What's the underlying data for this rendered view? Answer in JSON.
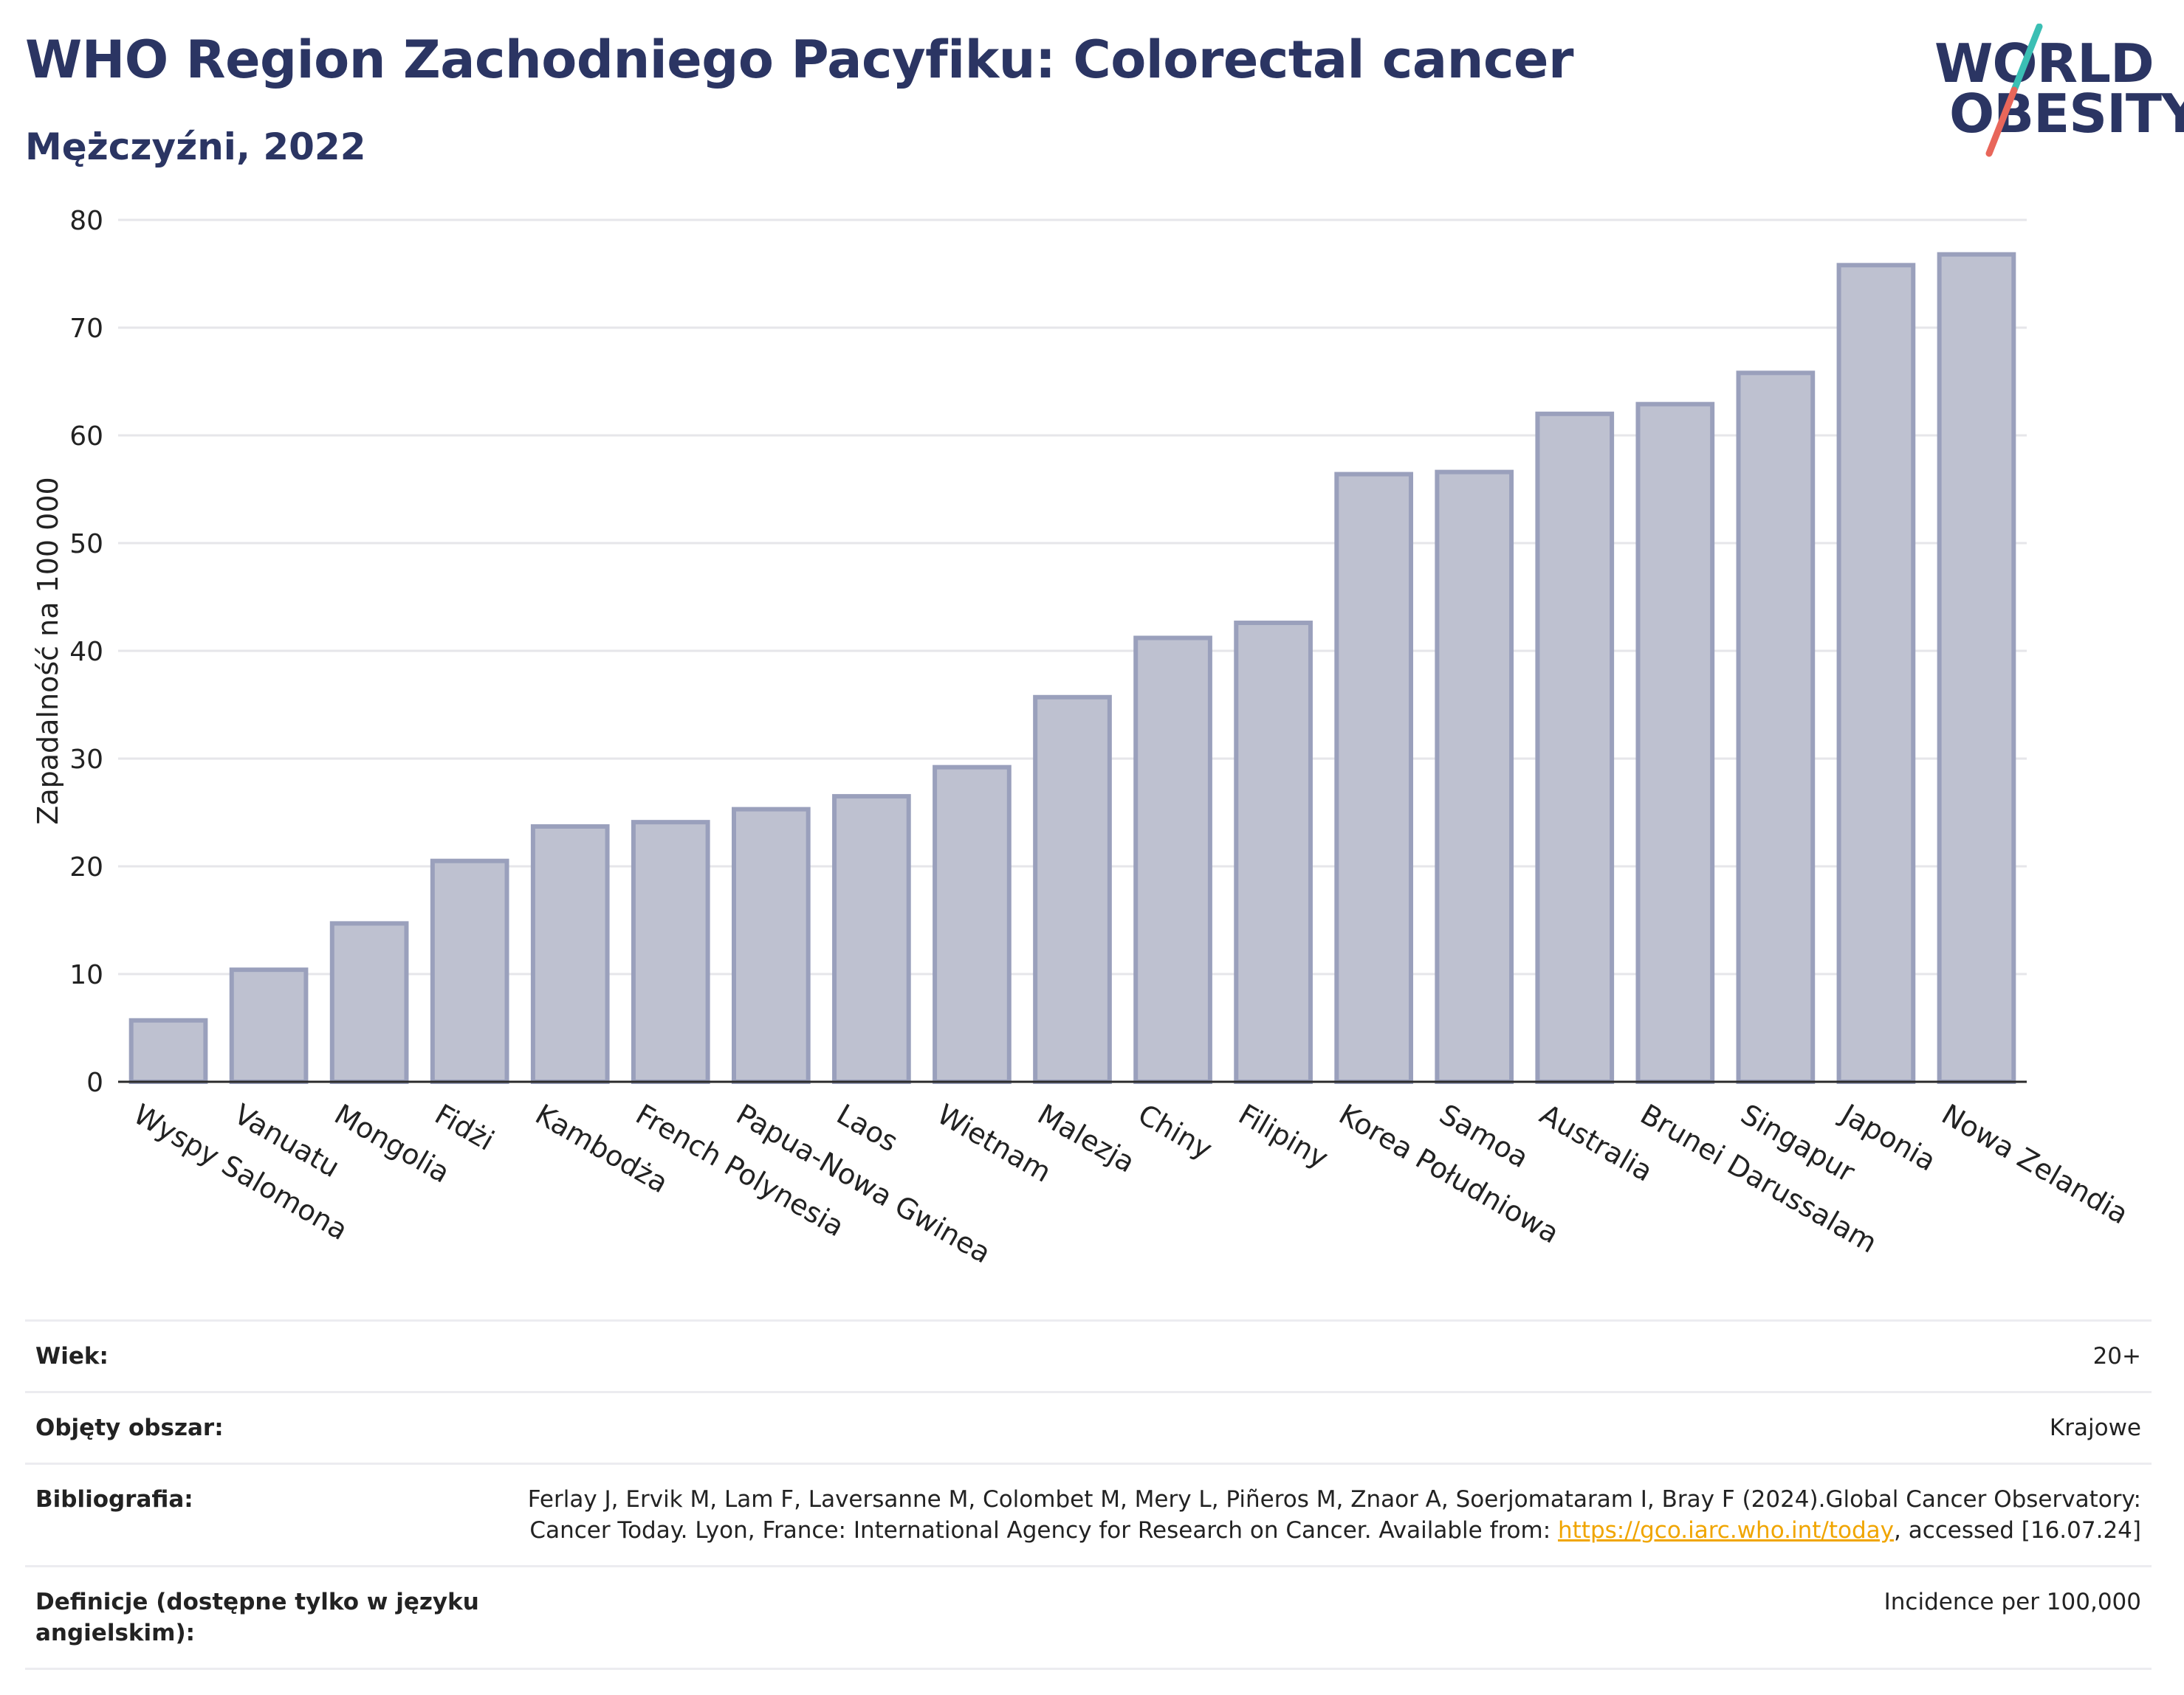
{
  "header": {
    "title": "WHO Region Zachodniego Pacyfiku: Colorectal cancer",
    "subtitle": "Mężczyźni, 2022"
  },
  "logo": {
    "line1": "WORLD",
    "line2": "OBESITY",
    "colors": {
      "text": "#2b3563",
      "slash_top": "#3bbfb4",
      "slash_bottom": "#e8665a"
    }
  },
  "colors": {
    "bar_fill": "#bec1d0",
    "bar_stroke": "#9aa0bc",
    "axis": "#2b2b2b",
    "grid": "#e6e6ea"
  },
  "chart_data": {
    "type": "bar",
    "title": "WHO Region Zachodniego Pacyfiku: Colorectal cancer",
    "subtitle": "Mężczyźni, 2022",
    "ylabel": "Zapadalność na 100 000",
    "xlabel": "",
    "ylim": [
      0,
      80
    ],
    "yticks": [
      0,
      10,
      20,
      30,
      40,
      50,
      60,
      70,
      80
    ],
    "grid": true,
    "categories": [
      "Wyspy Salomona",
      "Vanuatu",
      "Mongolia",
      "Fidżi",
      "Kambodża",
      "French Polynesia",
      "Papua-Nowa Gwinea",
      "Laos",
      "Wietnam",
      "Malezja",
      "Chiny",
      "Filipiny",
      "Korea Południowa",
      "Samoa",
      "Australia",
      "Brunei Darussalam",
      "Singapur",
      "Japonia",
      "Nowa Zelandia"
    ],
    "values": [
      5.7,
      10.4,
      14.7,
      20.5,
      23.7,
      24.1,
      25.3,
      26.5,
      29.2,
      35.7,
      41.2,
      42.6,
      56.4,
      56.6,
      62.0,
      62.9,
      65.8,
      75.8,
      76.8
    ]
  },
  "meta": {
    "rows": [
      {
        "label": "Wiek:",
        "value": "20+"
      },
      {
        "label": "Objęty obszar:",
        "value": "Krajowe"
      },
      {
        "label": "Bibliografia:",
        "value_before_link": "Ferlay J, Ervik M, Lam F, Laversanne M, Colombet M, Mery L, Piñeros M, Znaor A, Soerjomataram I, Bray F (2024).Global Cancer Observatory: Cancer Today. Lyon, France: International Agency for Research on Cancer. Available from: ",
        "link": "https://gco.iarc.who.int/today",
        "value_after_link": ", accessed [16.07.24]"
      },
      {
        "label": "Definicje (dostępne tylko w języku angielskim):",
        "value": "Incidence per 100,000"
      }
    ]
  }
}
